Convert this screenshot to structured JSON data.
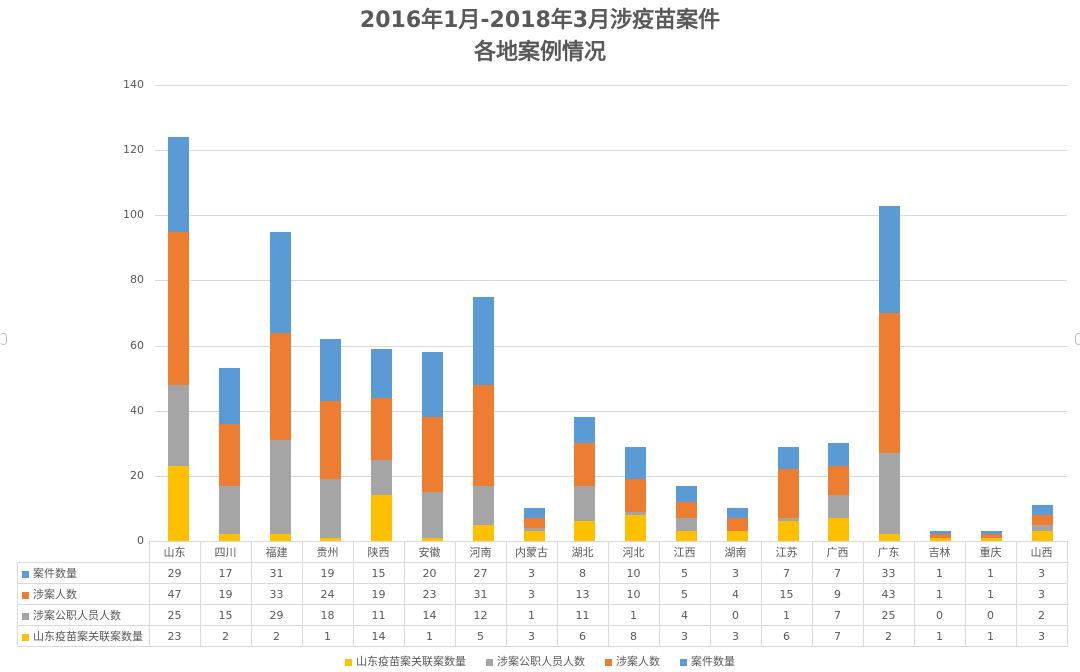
{
  "title": {
    "line1": "2016年1月-2018年3月涉疫苗案件",
    "line2": "各地案例情况"
  },
  "colors": {
    "案件数量": "#5B9BD5",
    "涉案人数": "#ED7D31",
    "涉案公职人员人数": "#A5A5A5",
    "山东疫苗案关联案数量": "#FFC000"
  },
  "chart_data": {
    "type": "bar",
    "stacked": true,
    "title": "2016年1月-2018年3月涉疫苗案件 各地案例情况",
    "xlabel": "",
    "ylabel": "",
    "ylim": [
      0,
      140
    ],
    "yticks": [
      0,
      20,
      40,
      60,
      80,
      100,
      120,
      140
    ],
    "grid": true,
    "legend_position": "bottom",
    "data_table": true,
    "categories": [
      "山东",
      "四川",
      "福建",
      "贵州",
      "陕西",
      "安徽",
      "河南",
      "内蒙古",
      "湖北",
      "河北",
      "江西",
      "湖南",
      "江苏",
      "广西",
      "广东",
      "吉林",
      "重庆",
      "山西"
    ],
    "series": [
      {
        "name": "山东疫苗案关联案数量",
        "color": "#FFC000",
        "values": [
          23,
          2,
          2,
          1,
          14,
          1,
          5,
          3,
          6,
          8,
          3,
          3,
          6,
          7,
          2,
          1,
          1,
          3
        ]
      },
      {
        "name": "涉案公职人员人数",
        "color": "#A5A5A5",
        "values": [
          25,
          15,
          29,
          18,
          11,
          14,
          12,
          1,
          11,
          1,
          4,
          0,
          1,
          7,
          25,
          0,
          0,
          2
        ]
      },
      {
        "name": "涉案人数",
        "color": "#ED7D31",
        "values": [
          47,
          19,
          33,
          24,
          19,
          23,
          31,
          3,
          13,
          10,
          5,
          4,
          15,
          9,
          43,
          1,
          1,
          3
        ]
      },
      {
        "name": "案件数量",
        "color": "#5B9BD5",
        "values": [
          29,
          17,
          31,
          19,
          15,
          20,
          27,
          3,
          8,
          10,
          5,
          3,
          7,
          7,
          33,
          1,
          1,
          3
        ]
      }
    ]
  },
  "table": {
    "rows": [
      {
        "label": "案件数量",
        "color": "#5B9BD5",
        "values": [
          29,
          17,
          31,
          19,
          15,
          20,
          27,
          3,
          8,
          10,
          5,
          3,
          7,
          7,
          33,
          1,
          1,
          3
        ]
      },
      {
        "label": "涉案人数",
        "color": "#ED7D31",
        "values": [
          47,
          19,
          33,
          24,
          19,
          23,
          31,
          3,
          13,
          10,
          5,
          4,
          15,
          9,
          43,
          1,
          1,
          3
        ]
      },
      {
        "label": "涉案公职人员人数",
        "color": "#A5A5A5",
        "values": [
          25,
          15,
          29,
          18,
          11,
          14,
          12,
          1,
          11,
          1,
          4,
          0,
          1,
          7,
          25,
          0,
          0,
          2
        ]
      },
      {
        "label": "山东疫苗案关联案数量",
        "color": "#FFC000",
        "values": [
          23,
          2,
          2,
          1,
          14,
          1,
          5,
          3,
          6,
          8,
          3,
          3,
          6,
          7,
          2,
          1,
          1,
          3
        ]
      }
    ]
  },
  "legend": [
    {
      "label": "山东疫苗案关联案数量",
      "color": "#FFC000"
    },
    {
      "label": "涉案公职人员人数",
      "color": "#A5A5A5"
    },
    {
      "label": "涉案人数",
      "color": "#ED7D31"
    },
    {
      "label": "案件数量",
      "color": "#5B9BD5"
    }
  ]
}
